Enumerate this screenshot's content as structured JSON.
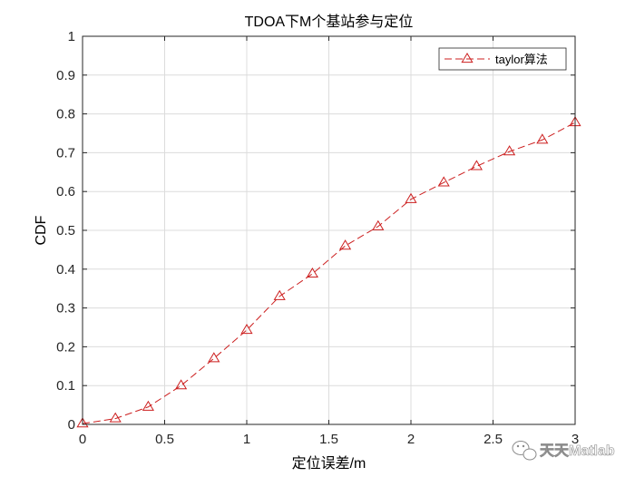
{
  "chart_data": {
    "type": "line",
    "title": "TDOA下M个基站参与定位",
    "xlabel": "定位误差/m",
    "ylabel": "CDF",
    "xlim": [
      0,
      3
    ],
    "ylim": [
      0,
      1
    ],
    "xticks": [
      0,
      0.5,
      1,
      1.5,
      2,
      2.5,
      3
    ],
    "xtick_labels": [
      "0",
      "0.5",
      "1",
      "1.5",
      "2",
      "2.5",
      "3"
    ],
    "yticks": [
      0,
      0.1,
      0.2,
      0.3,
      0.4,
      0.5,
      0.6,
      0.7,
      0.8,
      0.9,
      1
    ],
    "ytick_labels": [
      "0",
      "0.1",
      "0.2",
      "0.3",
      "0.4",
      "0.5",
      "0.6",
      "0.7",
      "0.8",
      "0.9",
      "1"
    ],
    "grid": true,
    "legend_position": "top-right",
    "series": [
      {
        "name": "taylor算法",
        "color": "#cc1f1f",
        "line_style": "dashed",
        "marker": "triangle",
        "x": [
          0,
          0.2,
          0.4,
          0.6,
          0.8,
          1.0,
          1.2,
          1.4,
          1.6,
          1.8,
          2.0,
          2.2,
          2.4,
          2.6,
          2.8,
          3.0
        ],
        "y": [
          0.002,
          0.015,
          0.045,
          0.1,
          0.17,
          0.243,
          0.33,
          0.388,
          0.46,
          0.51,
          0.58,
          0.623,
          0.665,
          0.703,
          0.733,
          0.778
        ]
      }
    ]
  },
  "watermark": {
    "text": "天天Matlab",
    "icon": "wechat-icon"
  }
}
